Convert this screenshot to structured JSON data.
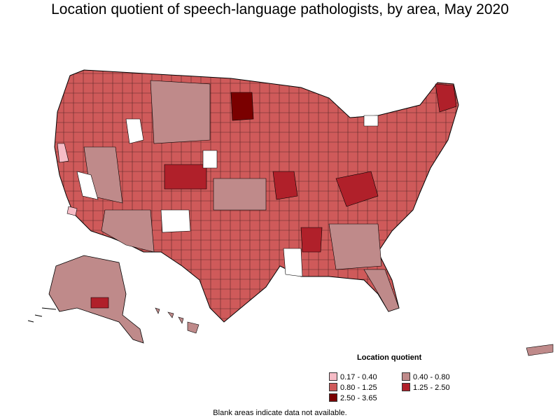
{
  "title": "Location quotient of speech-language pathologists, by area, May 2020",
  "legend": {
    "title": "Location quotient",
    "items": [
      {
        "label": "0.17 - 0.40",
        "color": "#f6bcc6"
      },
      {
        "label": "0.40 - 0.80",
        "color": "#bf8a8a"
      },
      {
        "label": "0.80 - 1.25",
        "color": "#cf5a5a"
      },
      {
        "label": "1.25 - 2.50",
        "color": "#b0202a"
      },
      {
        "label": "2.50 - 3.65",
        "color": "#7a0000"
      }
    ]
  },
  "note": "Blank areas indicate data not available.",
  "colors": {
    "border": "#000000",
    "blank": "#ffffff"
  }
}
